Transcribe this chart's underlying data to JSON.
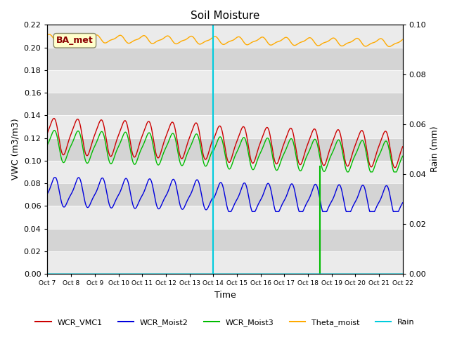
{
  "title": "Soil Moisture",
  "ylabel_left": "VWC (m3/m3)",
  "ylabel_right": "Rain (mm)",
  "xlabel": "Time",
  "ylim_left": [
    0.0,
    0.22
  ],
  "ylim_right": [
    0.0,
    0.1
  ],
  "colors": {
    "red": "#cc0000",
    "blue": "#0000dd",
    "green": "#00bb00",
    "orange": "#ffaa00",
    "cyan": "#00ccdd",
    "bg_dark": "#d8d8d8",
    "bg_light": "#e8e8e8"
  },
  "ba_met_label": "BA_met",
  "legend_labels": [
    "WCR_VMC1",
    "WCR_Moist2",
    "WCR_Moist3",
    "Theta_moist",
    "Rain"
  ],
  "xtick_labels": [
    "Oct 7",
    "Oct 8",
    "Oct 9",
    "Oct 10",
    "Oct 11",
    "Oct 12",
    "Oct 13",
    "Oct 14",
    "Oct 15",
    "Oct 16",
    "Oct 17",
    "Oct 18",
    "Oct 19",
    "Oct 20",
    "Oct 21",
    "Oct 22"
  ],
  "vline_cyan_day": 7,
  "rain_spike_day": 11.5,
  "title_fontsize": 11
}
